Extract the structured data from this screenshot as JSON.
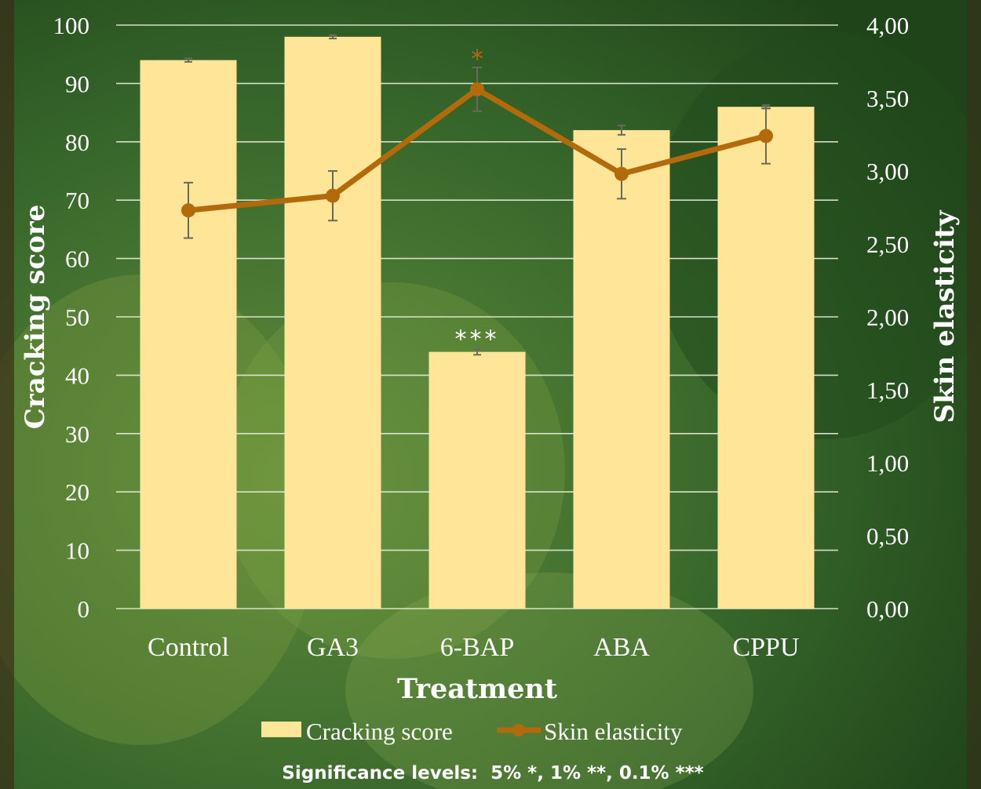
{
  "colors": {
    "background": "#2f5a26",
    "bar_fill": "#ffe597",
    "line": "#b26a0a",
    "grid": "#e8edd9",
    "text": "#ffffff",
    "error_bar": "#6a6a5a"
  },
  "chart_data": {
    "type": "bar",
    "xlabel": "Treatment",
    "ylabel": "Cracking score",
    "y2label": "Skin elasticity",
    "categories": [
      "Control",
      "GA3",
      "6-BAP",
      "ABA",
      "CPPU"
    ],
    "ylim": [
      0,
      100
    ],
    "y2lim": [
      0,
      4
    ],
    "yticks": [
      "0",
      "10",
      "20",
      "30",
      "40",
      "50",
      "60",
      "70",
      "80",
      "90",
      "100"
    ],
    "y2ticks": [
      "0,00",
      "0,50",
      "1,00",
      "1,50",
      "2,00",
      "2,50",
      "3,00",
      "3,50",
      "4,00"
    ],
    "grid": true,
    "legend_position": "bottom",
    "series": [
      {
        "name": "Cracking score",
        "type": "bar",
        "axis": "left",
        "values": [
          94,
          98,
          44,
          82,
          86
        ],
        "errors": [
          0.3,
          0.3,
          0.5,
          0.8,
          0.3
        ],
        "annotations": [
          "",
          "",
          "***",
          "",
          ""
        ]
      },
      {
        "name": "Skin elasticity",
        "type": "line",
        "axis": "right",
        "values": [
          2.73,
          2.83,
          3.56,
          2.98,
          3.24
        ],
        "errors": [
          0.19,
          0.17,
          0.15,
          0.17,
          0.19
        ],
        "annotations": [
          "",
          "",
          "*",
          "",
          ""
        ]
      }
    ],
    "note": "Significance levels:  5% *, 1% **, 0.1% ***"
  }
}
